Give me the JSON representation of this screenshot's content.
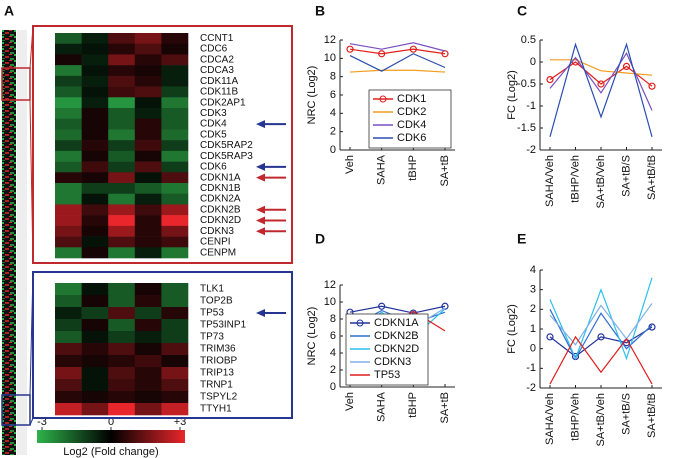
{
  "chart_data": [
    {
      "type": "heatmap",
      "panel": "A",
      "rows": [
        "CCNT1",
        "CDC6",
        "CDCA2",
        "CDCA3",
        "CDK11A",
        "CDK11B",
        "CDK2AP1",
        "CDK3",
        "CDK4",
        "CDK5",
        "CDK5RAP2",
        "CDK5RAP3",
        "CDK6",
        "CDKN1A",
        "CDKN1B",
        "CDKN2A",
        "CDKN2B",
        "CDKN2D",
        "CDKN3",
        "CENPI",
        "CENPM"
      ],
      "values": [
        [
          -1.5,
          -0.5,
          1,
          1.5,
          0.5
        ],
        [
          -0.5,
          -0.3,
          0.5,
          1,
          0.3
        ],
        [
          0.3,
          -0.5,
          1.5,
          0.5,
          1
        ],
        [
          -2,
          -0.3,
          0.5,
          0.3,
          -0.5
        ],
        [
          -1,
          -0.5,
          1,
          0.5,
          -0.5
        ],
        [
          -1.5,
          -0.3,
          0.8,
          1,
          -1
        ],
        [
          -2.5,
          -0.5,
          -2.5,
          -0.3,
          -2
        ],
        [
          -2,
          0.3,
          -1.5,
          -0.5,
          -1.5
        ],
        [
          -1.5,
          0.3,
          -1.5,
          0.5,
          -1.5
        ],
        [
          -1.8,
          0.3,
          -2,
          0.5,
          -1.8
        ],
        [
          -1,
          0.5,
          -1,
          0.8,
          -1
        ],
        [
          -2,
          0.3,
          -1.5,
          0.3,
          -2
        ],
        [
          -1.5,
          0.8,
          -1,
          1,
          -1
        ],
        [
          0.5,
          0.3,
          1.5,
          -0.3,
          1
        ],
        [
          -2,
          -1,
          -1,
          -1.5,
          -2
        ],
        [
          -2,
          -0.3,
          -2,
          -0.5,
          -1.5
        ],
        [
          2,
          0.8,
          2,
          0.8,
          2
        ],
        [
          2,
          0.5,
          3,
          0.5,
          3
        ],
        [
          1.5,
          0.3,
          2,
          0.5,
          1.5
        ],
        [
          1,
          -0.3,
          1,
          0.5,
          0.8
        ],
        [
          -2,
          0.3,
          -2,
          -0.5,
          -2
        ]
      ],
      "zlim": [
        -3,
        3
      ],
      "zticks": [
        -3,
        0,
        {
          "value": 3,
          "label": "+3"
        }
      ],
      "colors": [
        "#2eb34b",
        "#000000",
        "#e9262b"
      ],
      "colorbar_label": "Log2 (Fold change)",
      "border_color": "#c0282d"
    },
    {
      "type": "heatmap",
      "rows": [
        "TLK1",
        "TOP2B",
        "TP53",
        "TP53INP1",
        "TP73",
        "TRIM36",
        "TRIOBP",
        "TRIP13",
        "TRNP1",
        "TSPYL2",
        "TTYH1"
      ],
      "values": [
        [
          -2,
          -0.3,
          -1.5,
          0.3,
          -1.5
        ],
        [
          -1.5,
          0.3,
          -1.5,
          0.5,
          -1.5
        ],
        [
          -0.5,
          -1,
          1,
          -1,
          0.5
        ],
        [
          -1,
          0.3,
          -1.5,
          0.5,
          -1
        ],
        [
          -1.5,
          -0.3,
          -1,
          -0.5,
          -1
        ],
        [
          1,
          0.5,
          1,
          0.3,
          1
        ],
        [
          0.5,
          0.3,
          0.5,
          0.8,
          0.3
        ],
        [
          1.5,
          -0.3,
          1,
          0.5,
          1.5
        ],
        [
          1,
          -0.3,
          0.8,
          0.5,
          1
        ],
        [
          0.5,
          0.3,
          0.5,
          0.3,
          0.5
        ],
        [
          2.5,
          1.5,
          3,
          1.5,
          2.5
        ]
      ],
      "border_color": "#26358f"
    },
    {
      "type": "line",
      "panel": "B",
      "ylabel": "NRC (Log2)",
      "categories": [
        "Veh",
        "SAHA",
        "tBHP",
        "SA+tB"
      ],
      "ylim": [
        0,
        12
      ],
      "yticks": [
        0,
        2,
        4,
        6,
        8,
        10,
        12
      ],
      "legend": "lower right",
      "series": [
        {
          "name": "CDK1",
          "color": "#e0201b",
          "marker": "circle",
          "values": [
            11,
            10.5,
            11,
            10.5
          ]
        },
        {
          "name": "CDK2",
          "color": "#f39c1e",
          "values": [
            8.5,
            8.7,
            8.7,
            8.5
          ]
        },
        {
          "name": "CDK4",
          "color": "#7a4fc0",
          "values": [
            11.6,
            11,
            11.7,
            10.8
          ]
        },
        {
          "name": "CDK6",
          "color": "#2a4db0",
          "values": [
            10.3,
            8.6,
            10.5,
            9
          ]
        }
      ]
    },
    {
      "type": "line",
      "panel": "C",
      "ylabel": "FC (Log2)",
      "categories": [
        "SAHA/Veh",
        "tBHP/Veh",
        "SA+tB/Veh",
        "SA+tB/S",
        "SA+tB/tB"
      ],
      "ylim": [
        -2,
        0.5
      ],
      "yticks": [
        -2,
        -1.5,
        -1,
        -0.5,
        0,
        0.5
      ],
      "series": [
        {
          "color": "#e0201b",
          "marker": "circle",
          "values": [
            -0.4,
            0,
            -0.5,
            -0.1,
            -0.55
          ]
        },
        {
          "color": "#f39c1e",
          "values": [
            0.05,
            0.05,
            -0.2,
            -0.25,
            -0.3
          ]
        },
        {
          "color": "#7a4fc0",
          "values": [
            -0.6,
            0.1,
            -0.7,
            0.2,
            -1.1
          ]
        },
        {
          "color": "#2a4db0",
          "values": [
            -1.7,
            0.4,
            -1.25,
            0.4,
            -1.7
          ]
        }
      ]
    },
    {
      "type": "line",
      "panel": "D",
      "ylabel": "NRC (Log2)",
      "categories": [
        "Veh",
        "SAHA",
        "tBHP",
        "SA+tB"
      ],
      "ylim": [
        0,
        12
      ],
      "yticks": [
        0,
        2,
        4,
        6,
        8,
        10,
        12
      ],
      "legend": "lower left",
      "series": [
        {
          "name": "CDKN1A",
          "color": "#23339a",
          "marker": "circle",
          "values": [
            8.8,
            9.5,
            8.7,
            9.5
          ]
        },
        {
          "name": "CDKN2B",
          "color": "#2f6fcf",
          "values": [
            7,
            9,
            7.5,
            8.8
          ]
        },
        {
          "name": "CDKN2D",
          "color": "#2cc0ee",
          "values": [
            6.3,
            8.8,
            5.8,
            9.2
          ]
        },
        {
          "name": "CDKN3",
          "color": "#7fb0e8",
          "values": [
            6.8,
            8.5,
            7,
            9.3
          ]
        },
        {
          "name": "TP53",
          "color": "#e01d1d",
          "values": [
            8.4,
            6.7,
            8.9,
            6.6
          ]
        }
      ]
    },
    {
      "type": "line",
      "panel": "E",
      "ylabel": "FC (Log2)",
      "categories": [
        "SAHA/Veh",
        "tBHP/Veh",
        "SA+tB/Veh",
        "SA+tB/S",
        "SA+tB/tB"
      ],
      "ylim": [
        -2,
        4
      ],
      "yticks": [
        -2,
        -1,
        0,
        1,
        2,
        3,
        4
      ],
      "series": [
        {
          "color": "#23339a",
          "marker": "circle",
          "values": [
            0.6,
            -0.4,
            0.6,
            0.3,
            1.1
          ]
        },
        {
          "color": "#2f6fcf",
          "values": [
            2,
            -0.5,
            1.8,
            0,
            1.2
          ]
        },
        {
          "color": "#2cc0ee",
          "values": [
            2.5,
            -0.5,
            3,
            -0.5,
            3.6
          ]
        },
        {
          "color": "#7fb0e8",
          "values": [
            1.7,
            0.2,
            2.2,
            0.5,
            2.3
          ]
        },
        {
          "color": "#e01d1d",
          "values": [
            -1.8,
            0.6,
            -1.2,
            0.5,
            -1.8
          ]
        }
      ]
    }
  ]
}
